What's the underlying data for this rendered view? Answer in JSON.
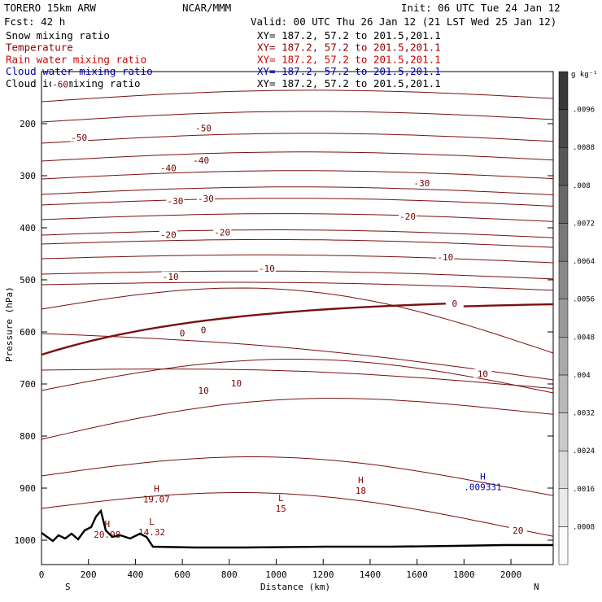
{
  "header": {
    "model": "TORERO  15km ARW",
    "center": "NCAR/MMM",
    "init": "Init: 06 UTC Tue 24 Jan 12",
    "fcst": "Fcst:   42 h",
    "valid": "Valid: 00 UTC Thu 26 Jan 12 (21 LST Wed 25 Jan 12)"
  },
  "legend": [
    {
      "label": "Snow mixing ratio",
      "color": "#000000",
      "xs": "XY= 187.2, 57.2 to 201.5,201.1"
    },
    {
      "label": "Temperature",
      "color": "#8b0000",
      "xs": "XY= 187.2, 57.2 to 201.5,201.1"
    },
    {
      "label": "Rain water mixing ratio",
      "color": "#cc0000",
      "xs": "XY= 187.2, 57.2 to 201.5,201.1"
    },
    {
      "label": "Cloud water mixing ratio",
      "color": "#0000aa",
      "xs": "XY= 187.2, 57.2 to 201.5,201.1"
    },
    {
      "label": "Cloud ice mixing ratio",
      "color": "#000000",
      "xs": "XY= 187.2, 57.2 to 201.5,201.1"
    }
  ],
  "chart_data": {
    "type": "cross-section",
    "xlabel": "Distance (km)",
    "ylabel": "Pressure (hPa)",
    "xlim": [
      0,
      2180
    ],
    "ylim": [
      1050,
      100
    ],
    "x_ticks": [
      0,
      200,
      400,
      600,
      800,
      1000,
      1200,
      1400,
      1600,
      1800,
      2000
    ],
    "x_tick_labels": [
      "0",
      "200",
      "400",
      "600",
      "800",
      "1000",
      "1200",
      "1400",
      "1600",
      "1800",
      "2000"
    ],
    "y_ticks": [
      200,
      300,
      400,
      500,
      600,
      700,
      800,
      900,
      1000
    ],
    "y_tick_labels": [
      "200",
      "300",
      "400",
      "500",
      "600",
      "700",
      "800",
      "900",
      "1000"
    ],
    "x_end_labels": {
      "left": "S",
      "right": "N"
    },
    "colorbar": {
      "unit": "g kg⁻¹",
      "ticks": [
        ".0008",
        ".0016",
        ".0024",
        ".0032",
        ".004",
        ".0048",
        ".0056",
        ".0064",
        ".0072",
        ".008",
        ".0088",
        ".0096"
      ]
    },
    "temperature_contour_labels": [
      {
        "text": "-60",
        "x": 80,
        "p": 126
      },
      {
        "text": "-50",
        "x": 160,
        "p": 228
      },
      {
        "text": "-50",
        "x": 690,
        "p": 210
      },
      {
        "text": "-40",
        "x": 540,
        "p": 287
      },
      {
        "text": "-40",
        "x": 680,
        "p": 272
      },
      {
        "text": "-30",
        "x": 570,
        "p": 350
      },
      {
        "text": "-30",
        "x": 700,
        "p": 345
      },
      {
        "text": "-30",
        "x": 1620,
        "p": 316
      },
      {
        "text": "-20",
        "x": 540,
        "p": 415
      },
      {
        "text": "-20",
        "x": 770,
        "p": 410
      },
      {
        "text": "-20",
        "x": 1560,
        "p": 380
      },
      {
        "text": "-10",
        "x": 550,
        "p": 495
      },
      {
        "text": "-10",
        "x": 960,
        "p": 480
      },
      {
        "text": "-10",
        "x": 1720,
        "p": 458
      },
      {
        "text": "0",
        "x": 600,
        "p": 604
      },
      {
        "text": "0",
        "x": 690,
        "p": 598
      },
      {
        "text": "0",
        "x": 1760,
        "p": 547
      },
      {
        "text": "10",
        "x": 690,
        "p": 714
      },
      {
        "text": "10",
        "x": 830,
        "p": 700
      },
      {
        "text": "10",
        "x": 1880,
        "p": 682
      },
      {
        "text": "20",
        "x": 2030,
        "p": 983
      }
    ],
    "extrema": [
      {
        "type": "H",
        "value": "19.07",
        "x": 490,
        "p": 912,
        "color": "#8b0000"
      },
      {
        "type": "H",
        "value": "20.98",
        "x": 280,
        "p": 980,
        "color": "#8b0000"
      },
      {
        "type": "L",
        "value": "14.32",
        "x": 470,
        "p": 975,
        "color": "#8b0000"
      },
      {
        "type": "L",
        "value": "15",
        "x": 1020,
        "p": 930,
        "color": "#8b0000"
      },
      {
        "type": "H",
        "value": "18",
        "x": 1360,
        "p": 895,
        "color": "#8b0000"
      },
      {
        "type": "H",
        "value": ".009331",
        "x": 1880,
        "p": 888,
        "color": "#0000aa"
      }
    ]
  }
}
